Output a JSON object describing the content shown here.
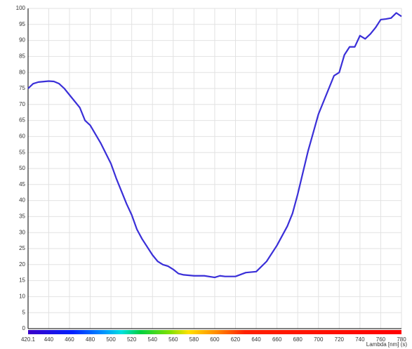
{
  "chart_data": {
    "type": "line",
    "x_label": "Lambda [nm] (s)",
    "x": [
      420.1,
      425,
      430,
      440,
      445,
      450,
      455,
      460,
      470,
      475,
      480,
      490,
      500,
      505,
      510,
      515,
      520,
      525,
      530,
      540,
      545,
      550,
      555,
      560,
      565,
      570,
      580,
      590,
      600,
      605,
      610,
      620,
      630,
      640,
      650,
      660,
      670,
      675,
      680,
      690,
      700,
      710,
      715,
      720,
      725,
      730,
      735,
      740,
      745,
      750,
      755,
      760,
      765,
      770,
      775,
      780
    ],
    "series": [
      {
        "color": "#3a2fd8",
        "values": [
          75,
          76.5,
          77,
          77.3,
          77.2,
          76.5,
          75,
          73,
          69,
          65,
          63.5,
          58,
          51.5,
          47,
          43,
          39,
          35.5,
          31,
          28,
          23,
          21,
          20,
          19.5,
          18.5,
          17.2,
          16.8,
          16.5,
          16.5,
          16,
          16.5,
          16.3,
          16.3,
          17.5,
          17.8,
          21,
          26,
          32,
          36,
          42,
          55.5,
          67,
          75,
          79,
          80,
          85.5,
          88,
          88,
          91.5,
          90.5,
          92,
          94,
          96.5,
          96.7,
          97,
          98.6,
          97.5
        ]
      }
    ],
    "xlim": [
      420.1,
      780
    ],
    "xticks": [
      420.1,
      440,
      460,
      480,
      500,
      520,
      540,
      560,
      580,
      600,
      620,
      640,
      660,
      680,
      700,
      720,
      740,
      760,
      780
    ],
    "ylim": [
      0,
      100
    ],
    "yticks": [
      0,
      5,
      10,
      15,
      20,
      25,
      30,
      35,
      40,
      45,
      50,
      55,
      60,
      65,
      70,
      75,
      80,
      85,
      90,
      95,
      100
    ],
    "grid": true
  }
}
